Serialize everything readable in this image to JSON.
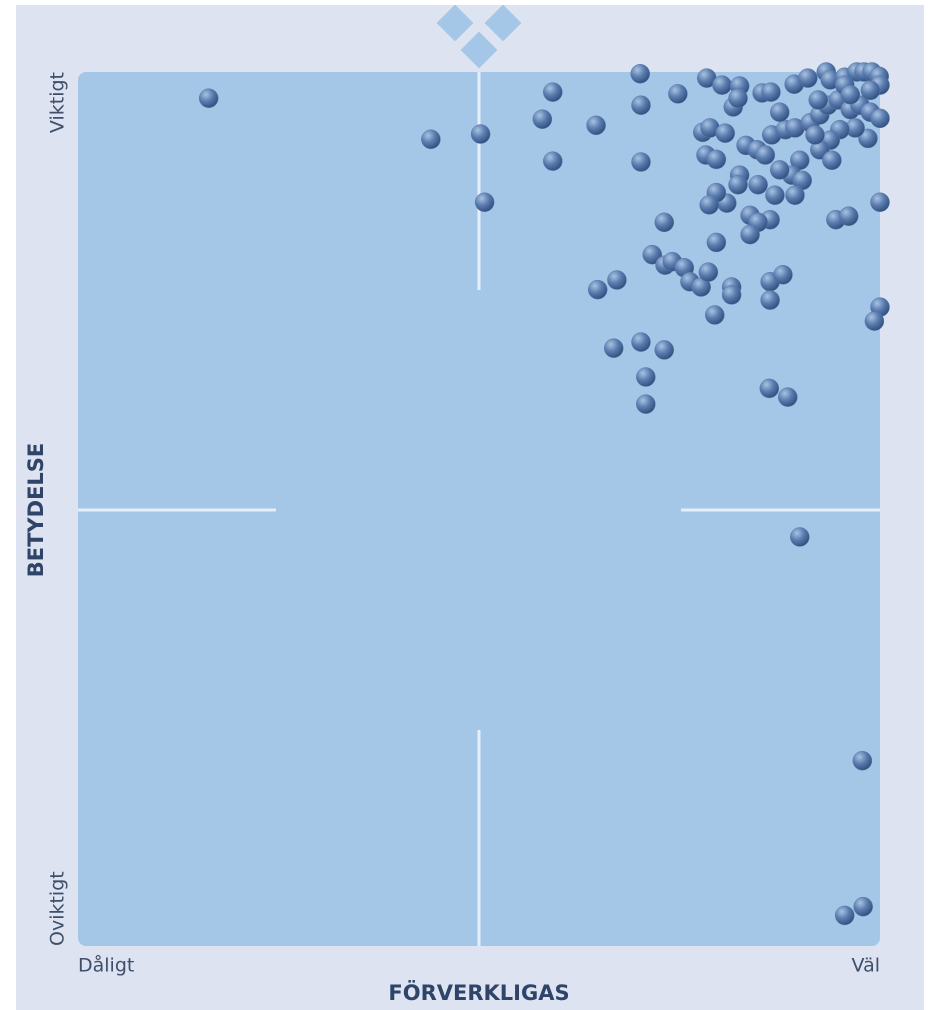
{
  "chart_data": {
    "type": "scatter",
    "xlabel": "FÖRVERKLIGAS",
    "ylabel": "BETYDELSE",
    "xlim": [
      0,
      100
    ],
    "ylim": [
      0,
      100
    ],
    "xticks": [
      {
        "value": 0,
        "label": "Dåligt"
      },
      {
        "value": 100,
        "label": "Väl"
      }
    ],
    "yticks": [
      {
        "value": 0,
        "label": "Oviktigt"
      },
      {
        "value": 100,
        "label": "Viktigt"
      }
    ],
    "color": "#5a7cae",
    "x": [
      16.3,
      44.0,
      50.2,
      50.7,
      59.2,
      57.9,
      59.2,
      64.6,
      70.1,
      70.2,
      70.2,
      73.1,
      74.8,
      78.4,
      80.3,
      82.5,
      81.7,
      82.3,
      85.3,
      86.4,
      89.3,
      91.0,
      93.3,
      93.8,
      95.6,
      97.1,
      98.0,
      99.0,
      99.9,
      100,
      77.9,
      78.8,
      80.7,
      78.3,
      79.6,
      83.3,
      84.7,
      85.7,
      86.5,
      88.2,
      89.4,
      91.3,
      92.5,
      93.5,
      94.8,
      96.3,
      97.5,
      98.8,
      100,
      98.5,
      96.9,
      95.0,
      93.8,
      92.5,
      94.0,
      90.0,
      89.0,
      90.3,
      89.4,
      87.5,
      86.9,
      86.3,
      83.8,
      84.8,
      83.8,
      82.5,
      82.3,
      84.8,
      80.9,
      79.6,
      78.7,
      79.6,
      71.6,
      73.2,
      74.1,
      75.6,
      76.3,
      77.7,
      78.6,
      81.5,
      81.5,
      86.3,
      87.9,
      86.3,
      64.8,
      67.2,
      79.4,
      66.8,
      70.2,
      73.1,
      70.8,
      70.8,
      86.2,
      88.5,
      94.5,
      96.1,
      100,
      100,
      99.3,
      90.0,
      97.8,
      95.6,
      97.9,
      87.5,
      91.9,
      95.6,
      96.3,
      98.8,
      92.3
    ],
    "y": [
      97.0,
      92.3,
      92.9,
      85.1,
      97.7,
      94.6,
      89.8,
      93.9,
      99.8,
      96.2,
      89.7,
      82.8,
      97.5,
      99.3,
      98.5,
      98.4,
      96.0,
      97.0,
      97.6,
      97.7,
      98.6,
      99.3,
      100,
      99.1,
      99.4,
      100,
      100,
      100,
      99.5,
      98.5,
      93.1,
      93.6,
      93.0,
      90.5,
      90.0,
      91.6,
      91.1,
      90.5,
      92.8,
      93.4,
      93.6,
      94.2,
      95.1,
      96.2,
      96.8,
      95.7,
      96.2,
      95.4,
      94.7,
      92.4,
      93.6,
      93.4,
      92.2,
      91.1,
      89.9,
      89.9,
      88.2,
      87.6,
      85.9,
      88.8,
      85.9,
      83.1,
      83.6,
      82.8,
      81.4,
      88.2,
      87.1,
      87.1,
      85.0,
      86.2,
      84.8,
      80.5,
      79.1,
      77.9,
      78.3,
      77.6,
      76.0,
      75.4,
      77.1,
      75.4,
      74.5,
      76.0,
      76.8,
      73.9,
      75.1,
      76.2,
      72.2,
      68.4,
      69.1,
      68.2,
      65.1,
      62.0,
      63.8,
      62.8,
      83.1,
      83.5,
      85.1,
      73.1,
      71.5,
      46.8,
      21.2,
      3.5,
      4.5,
      95.4,
      92.8,
      98.5,
      97.4,
      97.9,
      96.8
    ]
  }
}
